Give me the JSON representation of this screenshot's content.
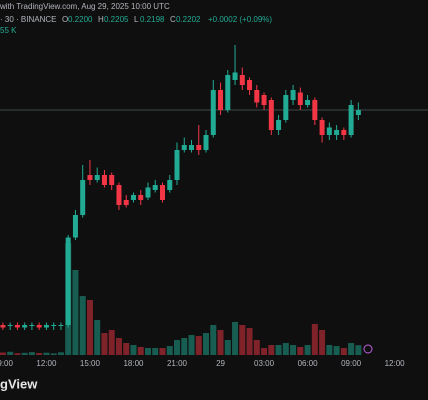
{
  "header": {
    "source": "with TradingView.com, Aug 29, 2025 10:00 UTC",
    "symbol": "· 30 · BINANCE",
    "ohlc": [
      {
        "key": "O",
        "value": "0.2200"
      },
      {
        "key": "H",
        "value": "0.2205"
      },
      {
        "key": "L",
        "value": "0.2198"
      },
      {
        "key": "C",
        "value": "0.2202"
      }
    ],
    "change": "+0.0002 (+0.09%)",
    "volume": "55 K"
  },
  "footer": {
    "logo": "gView"
  },
  "chart_data": {
    "type": "candlestick",
    "up_color": "#22ab94",
    "down_color": "#f23645",
    "open": [
      0.2116,
      0.2116,
      0.2116,
      0.2115,
      0.2116,
      0.2116,
      0.2115,
      0.2116,
      0.2116,
      0.2116,
      0.2151,
      0.216,
      0.2176,
      0.2174,
      0.2176,
      0.2176,
      0.2172,
      0.2166,
      0.2166,
      0.2168,
      0.2167,
      0.217,
      0.2172,
      0.217,
      0.2174,
      0.2186,
      0.2186,
      0.2188,
      0.2186,
      0.2192,
      0.221,
      0.2202,
      0.2214,
      0.2216,
      0.2214,
      0.221,
      0.2208,
      0.2206,
      0.2194,
      0.2198,
      0.2206,
      0.2209,
      0.2204,
      0.2206,
      0.2198,
      0.2192,
      0.2192,
      0.2194,
      0.2192,
      0.22
    ],
    "high": [
      0.2117,
      0.2117,
      0.2117,
      0.2117,
      0.2117,
      0.2117,
      0.2117,
      0.2117,
      0.2117,
      0.2152,
      0.2162,
      0.218,
      0.2182,
      0.2179,
      0.2178,
      0.2177,
      0.2173,
      0.2168,
      0.2169,
      0.217,
      0.2173,
      0.2174,
      0.2173,
      0.2176,
      0.2189,
      0.2191,
      0.219,
      0.2196,
      0.2194,
      0.2214,
      0.2213,
      0.2218,
      0.2228,
      0.2219,
      0.2215,
      0.2212,
      0.2209,
      0.2207,
      0.22,
      0.221,
      0.2212,
      0.2211,
      0.2208,
      0.2207,
      0.2199,
      0.2197,
      0.2196,
      0.2195,
      0.2206,
      0.2205
    ],
    "low": [
      0.2114,
      0.2114,
      0.2114,
      0.2114,
      0.2114,
      0.2114,
      0.2114,
      0.2114,
      0.2114,
      0.2115,
      0.215,
      0.2159,
      0.2172,
      0.2173,
      0.2171,
      0.217,
      0.2162,
      0.2163,
      0.2165,
      0.2164,
      0.2166,
      0.2169,
      0.2165,
      0.2169,
      0.2172,
      0.2185,
      0.2185,
      0.2184,
      0.2185,
      0.2191,
      0.22,
      0.2201,
      0.2212,
      0.221,
      0.2208,
      0.2203,
      0.2202,
      0.2192,
      0.2192,
      0.2197,
      0.2204,
      0.2202,
      0.2203,
      0.2196,
      0.2189,
      0.219,
      0.219,
      0.219,
      0.2191,
      0.2198
    ],
    "close": [
      0.2115,
      0.2116,
      0.2115,
      0.2116,
      0.2116,
      0.2115,
      0.2116,
      0.2116,
      0.2116,
      0.2151,
      0.216,
      0.2174,
      0.2174,
      0.2176,
      0.2172,
      0.2172,
      0.2164,
      0.2164,
      0.2168,
      0.2166,
      0.2171,
      0.2172,
      0.2166,
      0.2174,
      0.2186,
      0.2188,
      0.2188,
      0.2186,
      0.2192,
      0.221,
      0.2202,
      0.2216,
      0.2217,
      0.2212,
      0.221,
      0.2205,
      0.2204,
      0.2194,
      0.2198,
      0.2208,
      0.221,
      0.2204,
      0.2206,
      0.2198,
      0.2192,
      0.2195,
      0.2194,
      0.2192,
      0.2204,
      0.2202
    ],
    "volume": [
      14,
      18,
      10,
      12,
      16,
      11,
      13,
      9,
      15,
      627,
      476,
      330,
      308,
      196,
      123,
      140,
      95,
      67,
      56,
      45,
      39,
      39,
      39,
      50,
      84,
      95,
      112,
      106,
      123,
      168,
      140,
      84,
      185,
      168,
      151,
      84,
      39,
      56,
      56,
      67,
      56,
      45,
      56,
      174,
      140,
      56,
      50,
      39,
      67,
      55
    ],
    "ylim": [
      0.2104,
      0.2238
    ],
    "volume_ylim": [
      0,
      700
    ],
    "xlim": [
      -0.4,
      58.6
    ],
    "xticks": [
      {
        "value": 0,
        "label": "09:00"
      },
      {
        "value": 6,
        "label": "12:00"
      },
      {
        "value": 12,
        "label": "15:00"
      },
      {
        "value": 18,
        "label": "18:00"
      },
      {
        "value": 24,
        "label": "21:00"
      },
      {
        "value": 30,
        "label": "29"
      },
      {
        "value": 36,
        "label": "03:00"
      },
      {
        "value": 42,
        "label": "06:00"
      },
      {
        "value": 48,
        "label": "09:00"
      },
      {
        "value": 54,
        "label": "12:00"
      }
    ]
  }
}
